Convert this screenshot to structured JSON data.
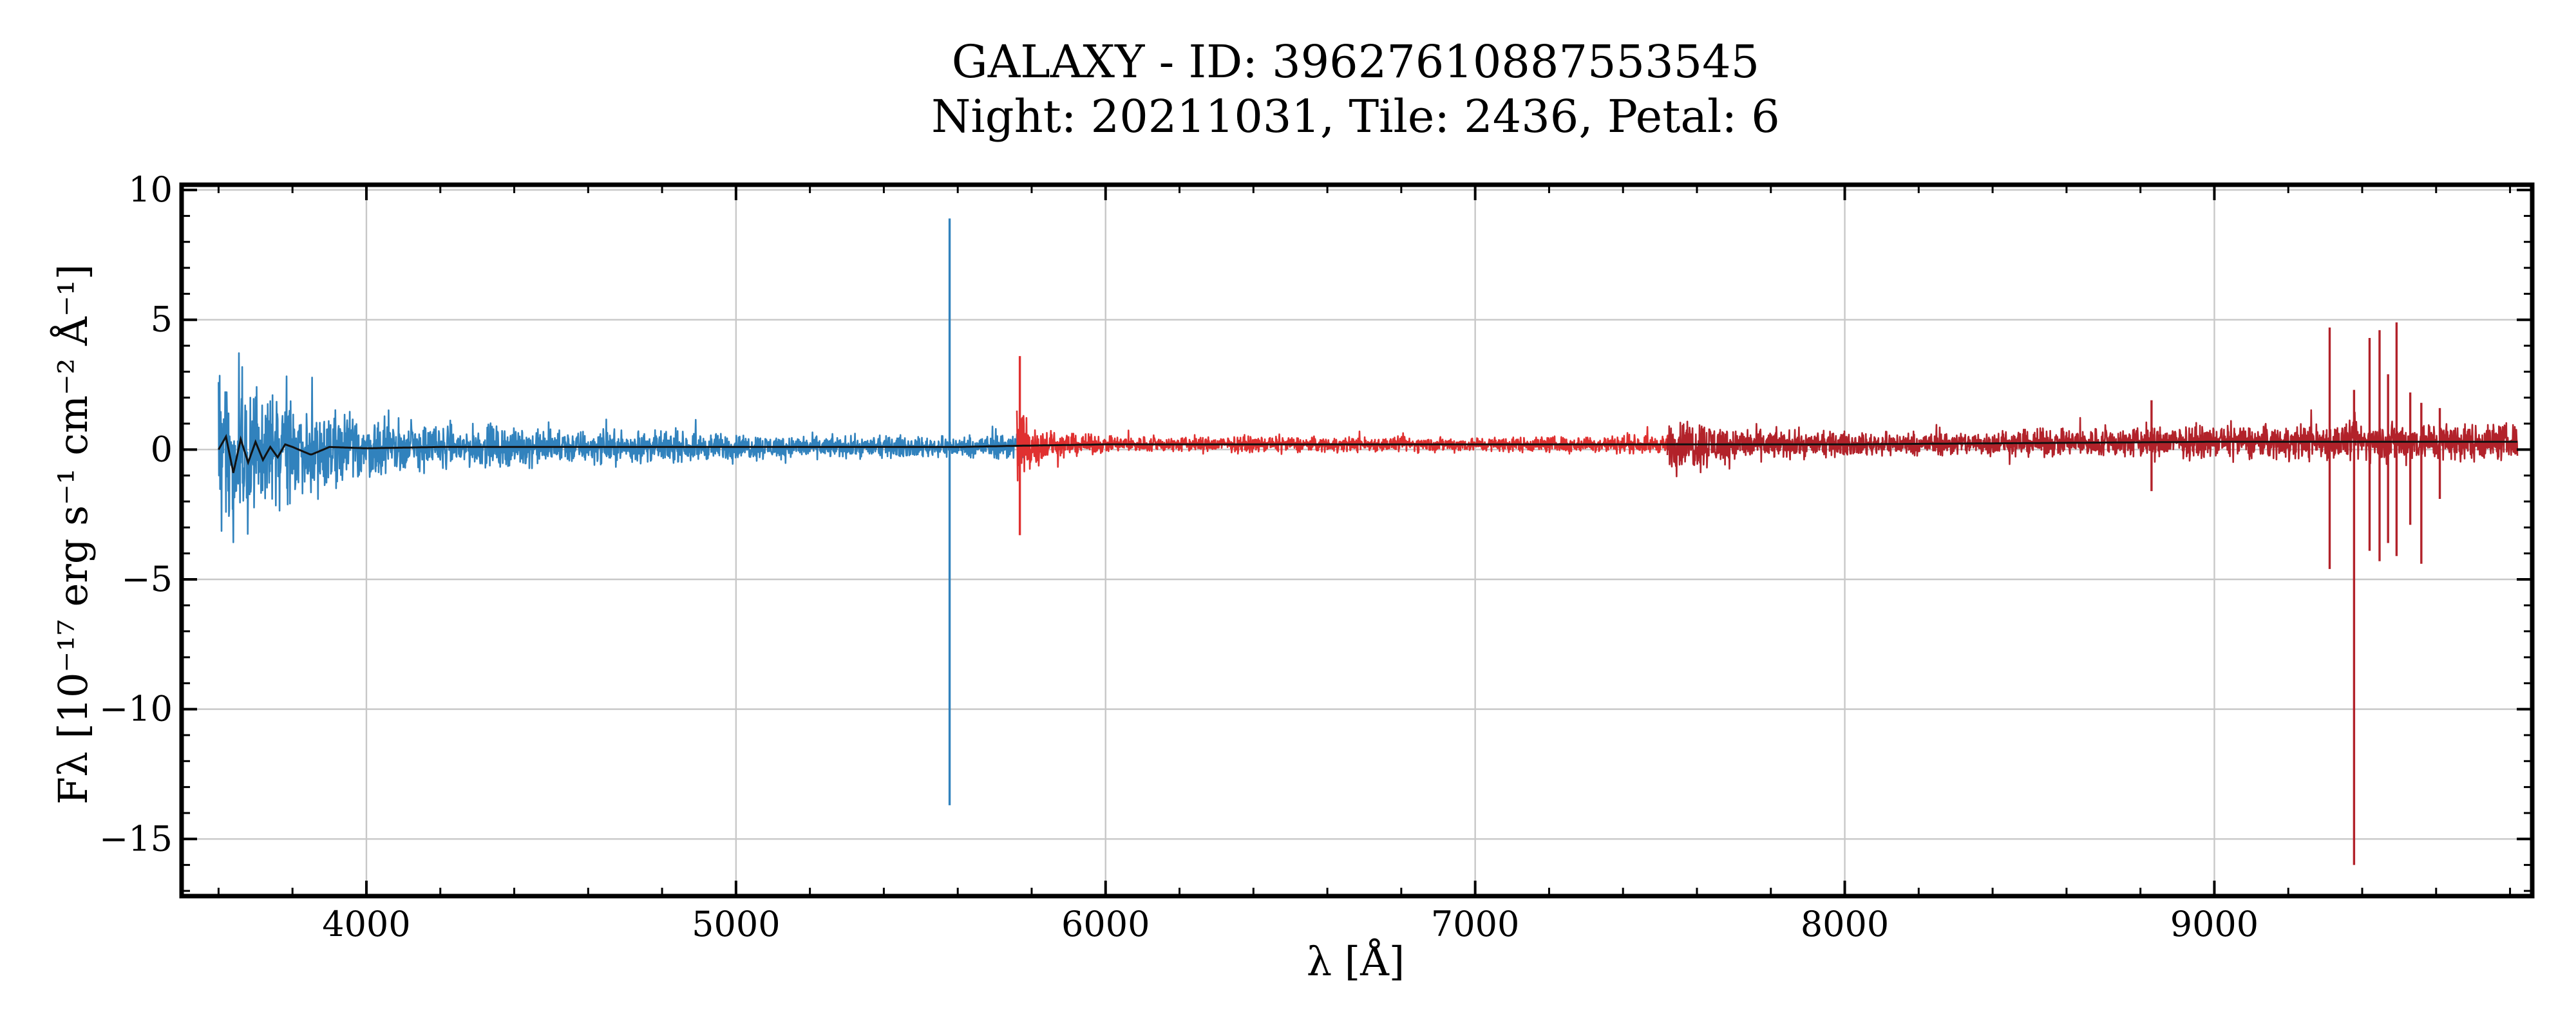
{
  "chart_data": {
    "type": "line",
    "title": "GALAXY - ID: 39627610887553545",
    "subtitle": "Night: 20211031, Tile: 2436, Petal: 6",
    "xlabel": "λ [Å]",
    "ylabel": "Fλ [10⁻¹⁷ erg s⁻¹ cm⁻² Å⁻¹]",
    "xlim": [
      3500,
      9860
    ],
    "ylim": [
      -17.2,
      10.2
    ],
    "xticks": [
      4000,
      5000,
      6000,
      7000,
      8000,
      9000
    ],
    "yticks": [
      10,
      5,
      0,
      -5,
      -10,
      -15
    ],
    "xtick_labels": [
      "4000",
      "5000",
      "6000",
      "7000",
      "8000",
      "9000"
    ],
    "ytick_labels": [
      "10",
      "5",
      "0",
      "−5",
      "−10",
      "−15"
    ],
    "grid": true,
    "series": [
      {
        "color": "#3182bd",
        "x_range": [
          3600,
          5780
        ],
        "envelope": {
          "x": [
            3600,
            3650,
            3700,
            3750,
            3800,
            3900,
            4000,
            4200,
            4400,
            4600,
            4800,
            5000,
            5200,
            5400,
            5600,
            5780
          ],
          "amplitude": [
            3.9,
            4.3,
            3.8,
            3.2,
            2.6,
            2.0,
            1.6,
            1.2,
            1.0,
            0.9,
            0.8,
            0.7,
            0.6,
            0.55,
            0.55,
            0.8
          ]
        },
        "spikes": [
          {
            "x": 5578,
            "top": 8.9,
            "bottom": -13.7
          }
        ]
      },
      {
        "color": "#e03030",
        "x_range": [
          5760,
          7540
        ],
        "envelope": {
          "x": [
            5760,
            5780,
            5800,
            5850,
            5900,
            6000,
            6500,
            7000,
            7300,
            7540
          ],
          "amplitude": [
            3.4,
            2.5,
            1.2,
            0.8,
            0.6,
            0.45,
            0.4,
            0.4,
            0.45,
            0.5
          ]
        },
        "spikes": [
          {
            "x": 5768,
            "top": 3.6,
            "bottom": -3.3
          }
        ]
      },
      {
        "color": "#b2222a",
        "x_range": [
          7520,
          9820
        ],
        "envelope": {
          "x": [
            7520,
            7600,
            7700,
            8000,
            8500,
            8800,
            9000,
            9300,
            9500,
            9820
          ],
          "amplitude": [
            1.3,
            1.4,
            0.9,
            0.6,
            0.7,
            0.9,
            0.8,
            1.0,
            1.1,
            1.0
          ]
        },
        "spikes": [
          {
            "x": 9312,
            "top": 4.7,
            "bottom": -4.6
          },
          {
            "x": 9378,
            "top": 2.3,
            "bottom": -16.0
          },
          {
            "x": 9420,
            "top": 4.3,
            "bottom": -3.9
          },
          {
            "x": 9447,
            "top": 4.6,
            "bottom": -4.3
          },
          {
            "x": 9470,
            "top": 2.9,
            "bottom": -3.6
          },
          {
            "x": 9493,
            "top": 4.9,
            "bottom": -4.1
          },
          {
            "x": 9530,
            "top": 2.2,
            "bottom": -2.9
          },
          {
            "x": 9560,
            "top": 1.8,
            "bottom": -4.4
          },
          {
            "x": 9610,
            "top": 1.6,
            "bottom": -1.9
          },
          {
            "x": 8830,
            "top": 1.9,
            "bottom": -1.6
          }
        ]
      }
    ],
    "model": {
      "color": "#111111",
      "x": [
        3600,
        3620,
        3640,
        3660,
        3680,
        3700,
        3720,
        3740,
        3760,
        3780,
        3800,
        3850,
        3900,
        4000,
        4200,
        4400,
        4600,
        4800,
        5000,
        5200,
        5400,
        5600,
        5780,
        6000,
        6500,
        7000,
        7500,
        8000,
        8500,
        9000,
        9500,
        9820
      ],
      "y": [
        0.0,
        0.5,
        -0.9,
        0.4,
        -0.5,
        0.3,
        -0.4,
        0.1,
        -0.3,
        0.2,
        0.1,
        -0.2,
        0.1,
        0.05,
        0.1,
        0.1,
        0.1,
        0.1,
        0.1,
        0.1,
        0.1,
        0.1,
        0.15,
        0.2,
        0.2,
        0.2,
        0.2,
        0.2,
        0.25,
        0.3,
        0.3,
        0.3
      ]
    }
  }
}
